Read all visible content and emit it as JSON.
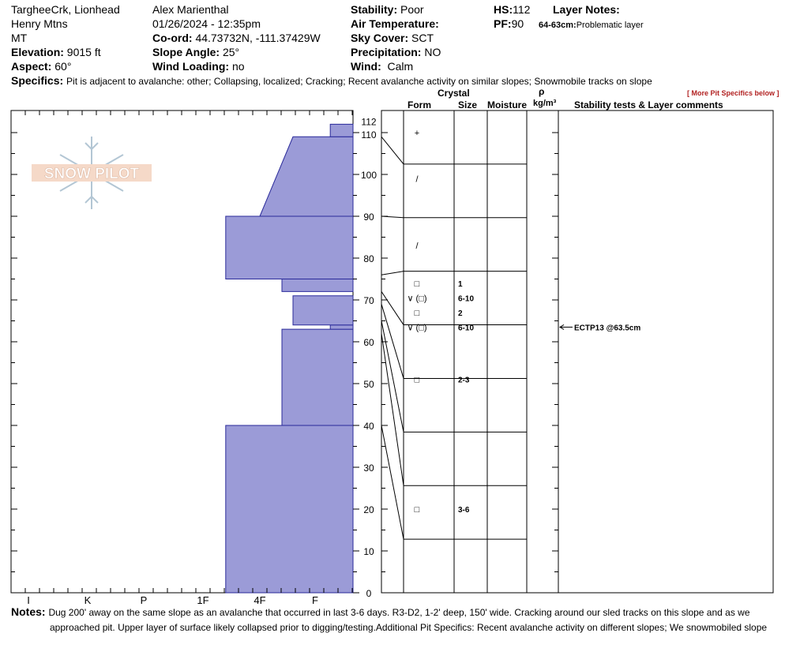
{
  "header": {
    "location": "TargheeCrk, Lionhead",
    "range": "Henry Mtns",
    "state": "MT",
    "elevation_label": "Elevation:",
    "elevation_value": "9015 ft",
    "aspect_label": "Aspect:",
    "aspect_value": "60°",
    "observer": "Alex Marienthal",
    "datetime": "01/26/2024 - 12:35pm",
    "coord_label": "Co-ord:",
    "coord_value": "44.73732N, -111.37429W",
    "slope_label": "Slope Angle:",
    "slope_value": "25°",
    "wind_loading_label": "Wind Loading:",
    "wind_loading_value": "no",
    "stability_label": "Stability:",
    "stability_value": "Poor",
    "air_temp_label": "Air Temperature:",
    "air_temp_value": "",
    "sky_label": "Sky Cover:",
    "sky_value": "SCT",
    "precip_label": "Precipitation:",
    "precip_value": "NO",
    "wind_label": "Wind:",
    "wind_value": "Calm",
    "hs_label": "HS:",
    "hs_value": "112",
    "pf_label": "PF:",
    "pf_value": "90",
    "layer_notes_label": "Layer Notes:",
    "layer_note_range": "64-63cm:",
    "layer_note_text": "Problematic layer",
    "specifics_label": "Specifics:",
    "specifics_text": "Pit is adjacent to avalanche: other; Collapsing, localized; Cracking; Recent avalanche activity on similar slopes; Snowmobile tracks on slope",
    "more_specifics": "[ More Pit Specifics below ]"
  },
  "logo_text": "SNOW PILOT",
  "columns": {
    "crystal": "Crystal",
    "form": "Form",
    "size": "Size",
    "moisture": "Moisture",
    "rho": "ρ",
    "density_unit": "kg/m³",
    "stability": "Stability tests & Layer comments"
  },
  "notes_label": "Notes:",
  "notes_line1": "Dug 200' away on the same slope as an avalanche that occurred in last 3-6 days. R3-D2, 1-2' deep, 150' wide. Cracking around our sled tracks on this slope and as we",
  "notes_line2": "approached pit. Upper layer of surface likely collapsed prior to digging/testing.Additional Pit Specifics: Recent avalanche activity on different slopes; We snowmobiled slope",
  "chart_data": {
    "type": "snow_profile",
    "y_label": "cm",
    "ylim": [
      0,
      112
    ],
    "y_ticks": [
      0,
      10,
      20,
      30,
      40,
      50,
      60,
      70,
      80,
      90,
      100,
      110,
      112
    ],
    "hardness_scale": [
      "I",
      "K",
      "P",
      "1F",
      "4F",
      "F"
    ],
    "hardness_profile": [
      {
        "top": 40,
        "bottom": 0,
        "hardness": "1F+"
      },
      {
        "top": 63,
        "bottom": 40,
        "hardness": "4F+"
      },
      {
        "top": 64,
        "bottom": 63,
        "hardness": "F+"
      },
      {
        "top": 71,
        "bottom": 64,
        "hardness": "F-"
      },
      {
        "top": 75,
        "bottom": 72,
        "hardness": "4F+"
      },
      {
        "top": 90,
        "bottom": 75,
        "hardness": "1F+"
      },
      {
        "top": 109,
        "bottom": 90,
        "hardness": "4F",
        "top_hardness": "F-"
      },
      {
        "top": 112,
        "bottom": 109,
        "hardness": "F+"
      }
    ],
    "layer_boundaries": [
      112,
      109,
      90,
      76,
      72,
      69,
      65,
      62,
      40,
      0
    ],
    "grain_layers": [
      {
        "form": "+",
        "height": 110,
        "size": ""
      },
      {
        "form": "/",
        "height": 99,
        "size": ""
      },
      {
        "form": "/",
        "height": 83,
        "size": ""
      },
      {
        "form": "□",
        "height": 74,
        "size": "1"
      },
      {
        "form": "∨ (□)",
        "height": 70.5,
        "size": "6-10"
      },
      {
        "form": "□",
        "height": 67,
        "size": "2"
      },
      {
        "form": "∨ (□)",
        "height": 63.5,
        "size": "6-10"
      },
      {
        "form": "□",
        "height": 51,
        "size": "2-3"
      },
      {
        "form": "□",
        "height": 20,
        "size": "3-6"
      }
    ],
    "stability_tests": [
      {
        "height": 63.5,
        "text": "ECTP13 @63.5cm"
      }
    ]
  }
}
